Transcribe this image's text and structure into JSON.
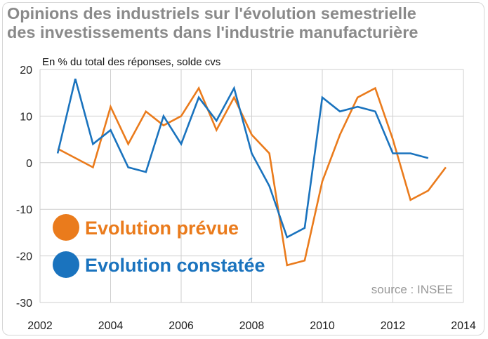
{
  "chart_data": {
    "type": "line",
    "title_lines": [
      "Opinions des industriels sur l'évolution semestrielle",
      "des investissements dans l'industrie manufacturière"
    ],
    "subtitle": "En % du total des réponses, solde cvs",
    "source": "source : INSEE",
    "xlim": [
      2002,
      2014
    ],
    "ylim": [
      -30,
      20
    ],
    "xticks": [
      2002,
      2004,
      2006,
      2008,
      2010,
      2012,
      2014
    ],
    "yticks": [
      20,
      10,
      0,
      -10,
      -20,
      -30
    ],
    "grid": true,
    "legend_position": "lower-left",
    "series": [
      {
        "name": "Evolution prévue",
        "color": "#ea7b1c",
        "points": [
          [
            2002.5,
            3
          ],
          [
            2003.5,
            -1
          ],
          [
            2004.0,
            12
          ],
          [
            2004.5,
            4
          ],
          [
            2005.0,
            11
          ],
          [
            2005.5,
            8
          ],
          [
            2006.0,
            10
          ],
          [
            2006.5,
            16
          ],
          [
            2007.0,
            7
          ],
          [
            2007.5,
            14
          ],
          [
            2008.0,
            6
          ],
          [
            2008.5,
            2
          ],
          [
            2009.0,
            -22
          ],
          [
            2009.5,
            -21
          ],
          [
            2010.0,
            -4
          ],
          [
            2010.5,
            6
          ],
          [
            2011.0,
            14
          ],
          [
            2011.5,
            16
          ],
          [
            2012.0,
            5
          ],
          [
            2012.5,
            -8
          ],
          [
            2013.0,
            -6
          ],
          [
            2013.5,
            -1
          ]
        ]
      },
      {
        "name": "Evolution constatée",
        "color": "#1a73be",
        "points": [
          [
            2002.5,
            2
          ],
          [
            2003.0,
            18
          ],
          [
            2003.5,
            4
          ],
          [
            2004.0,
            7
          ],
          [
            2004.5,
            -1
          ],
          [
            2005.0,
            -2
          ],
          [
            2005.5,
            10
          ],
          [
            2006.0,
            4
          ],
          [
            2006.5,
            14
          ],
          [
            2007.0,
            9
          ],
          [
            2007.5,
            16
          ],
          [
            2008.0,
            2
          ],
          [
            2008.5,
            -5
          ],
          [
            2009.0,
            -16
          ],
          [
            2009.5,
            -14
          ],
          [
            2010.0,
            14
          ],
          [
            2010.5,
            11
          ],
          [
            2011.0,
            12
          ],
          [
            2011.5,
            11
          ],
          [
            2012.0,
            2
          ],
          [
            2012.5,
            2
          ],
          [
            2013.0,
            1
          ]
        ]
      }
    ]
  },
  "colors": {
    "title": "#8a8a8a",
    "grid": "#cfcfcf",
    "axis": "#222222",
    "source": "#999999"
  }
}
